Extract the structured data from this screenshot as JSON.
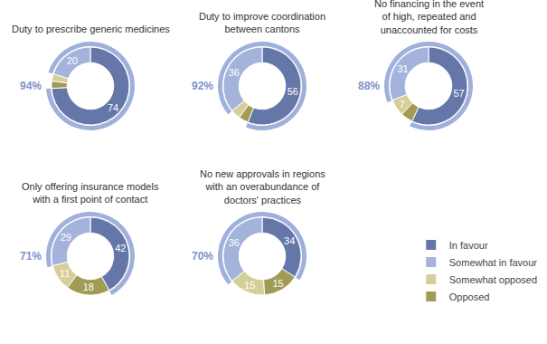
{
  "chart_data": [
    {
      "type": "pie",
      "title": "Duty to prescribe generic medicines",
      "categories": [
        "In favour",
        "Somewhat in favour",
        "Somewhat opposed",
        "Opposed"
      ],
      "values": [
        74,
        20,
        3,
        3
      ],
      "value_labels": [
        "74",
        "20",
        null,
        null
      ],
      "colors": [
        "#6577a8",
        "#a3b3dc",
        "#d6ce98",
        "#a29b55"
      ],
      "data_labels": true,
      "annotations": [
        "94%"
      ],
      "legend": "bottom right"
    },
    {
      "type": "pie",
      "title": "Duty to improve coordination\nbetween cantons",
      "categories": [
        "In favour",
        "Somewhat in favour",
        "Somewhat opposed",
        "Opposed"
      ],
      "values": [
        56,
        36,
        4,
        4
      ],
      "value_labels": [
        "56",
        "36",
        null,
        null
      ],
      "colors": [
        "#6577a8",
        "#a3b3dc",
        "#d6ce98",
        "#a29b55"
      ],
      "data_labels": true,
      "annotations": [
        "92%"
      ]
    },
    {
      "type": "pie",
      "title": "No financing in the event\nof high, repeated and\nunaccounted for costs",
      "categories": [
        "In favour",
        "Somewhat in favour",
        "Somewhat opposed",
        "Opposed"
      ],
      "values": [
        57,
        31,
        7,
        5
      ],
      "value_labels": [
        "57",
        "31",
        "7",
        null
      ],
      "colors": [
        "#6577a8",
        "#a3b3dc",
        "#d6ce98",
        "#a29b55"
      ],
      "data_labels": true,
      "annotations": [
        "88%"
      ]
    },
    {
      "type": "pie",
      "title": "Only offering insurance models\nwith a first point of contact",
      "categories": [
        "In favour",
        "Somewhat in favour",
        "Somewhat opposed",
        "Opposed"
      ],
      "values": [
        42,
        29,
        11,
        18
      ],
      "value_labels": [
        "42",
        "29",
        "11",
        "18"
      ],
      "colors": [
        "#6577a8",
        "#a3b3dc",
        "#d6ce98",
        "#a29b55"
      ],
      "data_labels": true,
      "annotations": [
        "71%"
      ]
    },
    {
      "type": "pie",
      "title": "No new approvals in regions\nwith an overabundance of\ndoctors' practices",
      "categories": [
        "In favour",
        "Somewhat in favour",
        "Somewhat opposed",
        "Opposed"
      ],
      "values": [
        34,
        36,
        15,
        15
      ],
      "value_labels": [
        "34",
        "36",
        "15",
        "15"
      ],
      "colors": [
        "#6577a8",
        "#a3b3dc",
        "#d6ce98",
        "#a29b55"
      ],
      "data_labels": true,
      "annotations": [
        "70%"
      ]
    }
  ]
}
